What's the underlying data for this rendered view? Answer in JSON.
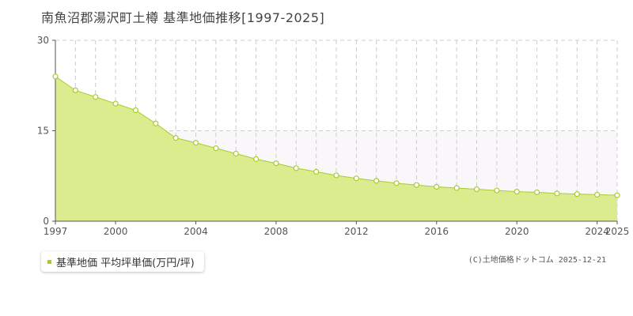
{
  "page": {
    "title": "南魚沼郡湯沢町土樽  基準地価推移[1997-2025]",
    "credit": "(C)土地価格ドットコム 2025-12-21"
  },
  "legend": {
    "label": "基準地価 平均坪単価(万円/坪)",
    "color": "#a7cc2e"
  },
  "colors": {
    "fill": "#dbec8f",
    "line": "#a7cc2e",
    "band": "#faf7fb",
    "grid": "#cccccc",
    "axis": "#555555"
  },
  "chart_data": {
    "type": "area",
    "x": [
      1997,
      1998,
      1999,
      2000,
      2001,
      2002,
      2003,
      2004,
      2005,
      2006,
      2007,
      2008,
      2009,
      2010,
      2011,
      2012,
      2013,
      2014,
      2015,
      2016,
      2017,
      2018,
      2019,
      2020,
      2021,
      2022,
      2023,
      2024,
      2025
    ],
    "series": [
      {
        "name": "基準地価 平均坪単価(万円/坪)",
        "values": [
          24.0,
          21.7,
          20.6,
          19.5,
          18.4,
          16.2,
          13.8,
          13.0,
          12.1,
          11.2,
          10.3,
          9.6,
          8.8,
          8.2,
          7.6,
          7.1,
          6.7,
          6.3,
          6.0,
          5.7,
          5.5,
          5.3,
          5.1,
          4.9,
          4.8,
          4.6,
          4.5,
          4.4,
          4.3
        ]
      }
    ],
    "xticks": [
      "1997",
      "2000",
      "2004",
      "2008",
      "2012",
      "2016",
      "2020",
      "2024",
      "2025"
    ],
    "yticks": [
      "0",
      "15",
      "30"
    ],
    "ylim": [
      0,
      30
    ],
    "xlim": [
      1997,
      2025
    ],
    "grid": true,
    "legend_position": "bottom-left"
  }
}
